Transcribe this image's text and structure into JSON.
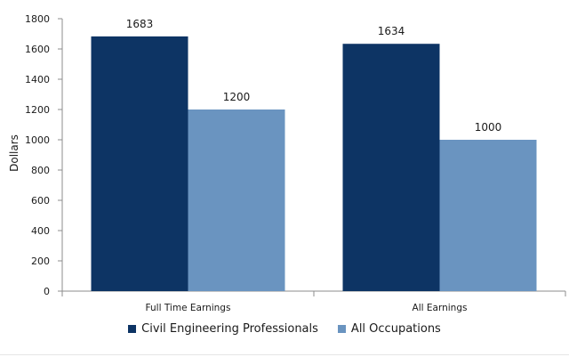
{
  "chart_data": {
    "type": "bar",
    "categories": [
      "Full Time Earnings",
      "All Earnings"
    ],
    "series": [
      {
        "name": "Civil Engineering Professionals",
        "values": [
          1683,
          1634
        ],
        "color": "#0d3464"
      },
      {
        "name": "All Occupations",
        "values": [
          1200,
          1000
        ],
        "color": "#6a94c0"
      }
    ],
    "ylabel": "Dollars",
    "ylim": [
      0,
      1800
    ],
    "yticks": [
      0,
      200,
      400,
      600,
      800,
      1000,
      1200,
      1400,
      1600,
      1800
    ],
    "grid": false,
    "legend_position": "bottom"
  }
}
